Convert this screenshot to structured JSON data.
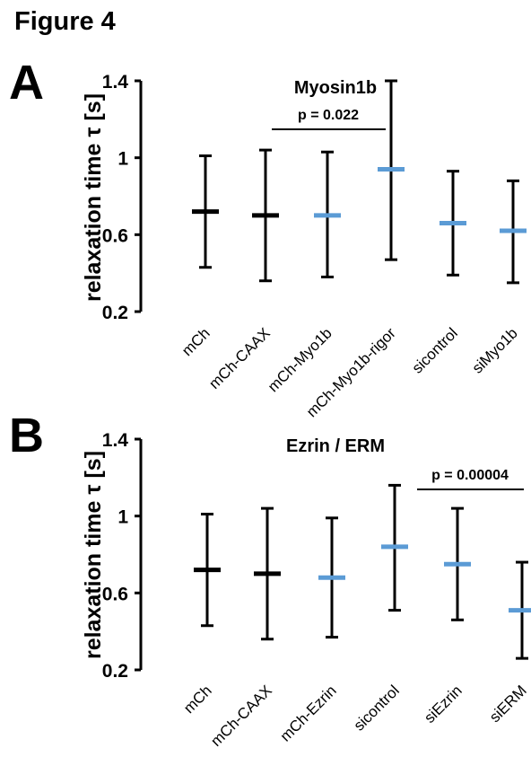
{
  "figure_title": "Figure 4",
  "colors": {
    "black": "#000000",
    "blue": "#5b9bd5"
  },
  "chart_data": [
    {
      "type": "errorbar",
      "panel_label": "A",
      "title": "Myosin1b",
      "ylabel": "relaxation time τ [s]",
      "ylim": [
        0.2,
        1.4
      ],
      "yticks": [
        "0.2",
        "0.6",
        "1",
        "1.4"
      ],
      "grid": false,
      "categories": [
        "mCh",
        "mCh-CAAX",
        "mCh-Myo1b",
        "mCh-Myo1b-rigor",
        "sicontrol",
        "siMyo1b"
      ],
      "series": [
        {
          "values": [
            0.72,
            0.7,
            0.7,
            0.94,
            0.66,
            0.62
          ],
          "upper": [
            1.01,
            1.04,
            1.03,
            1.4,
            0.93,
            0.88
          ],
          "lower": [
            0.43,
            0.36,
            0.38,
            0.47,
            0.39,
            0.35
          ],
          "colors": [
            "#000000",
            "#000000",
            "#5b9bd5",
            "#5b9bd5",
            "#5b9bd5",
            "#5b9bd5"
          ]
        }
      ],
      "annotation": {
        "text": "p = 0.022",
        "from": 1,
        "to": 3
      }
    },
    {
      "type": "errorbar",
      "panel_label": "B",
      "title": "Ezrin / ERM",
      "ylabel": "relaxation time τ [s]",
      "ylim": [
        0.2,
        1.4
      ],
      "yticks": [
        "0.2",
        "0.6",
        "1",
        "1.4"
      ],
      "grid": false,
      "categories": [
        "mCh",
        "mCh-CAAX",
        "mCh-Ezrin",
        "sicontrol",
        "siEzrin",
        "siERM"
      ],
      "series": [
        {
          "values": [
            0.72,
            0.7,
            0.68,
            0.84,
            0.75,
            0.51
          ],
          "upper": [
            1.01,
            1.04,
            0.99,
            1.16,
            1.04,
            0.76
          ],
          "lower": [
            0.43,
            0.36,
            0.37,
            0.51,
            0.46,
            0.26
          ],
          "colors": [
            "#000000",
            "#000000",
            "#5b9bd5",
            "#5b9bd5",
            "#5b9bd5",
            "#5b9bd5"
          ]
        }
      ],
      "annotation": {
        "text": "p = 0.00004",
        "from": 4,
        "to": 5
      }
    }
  ]
}
